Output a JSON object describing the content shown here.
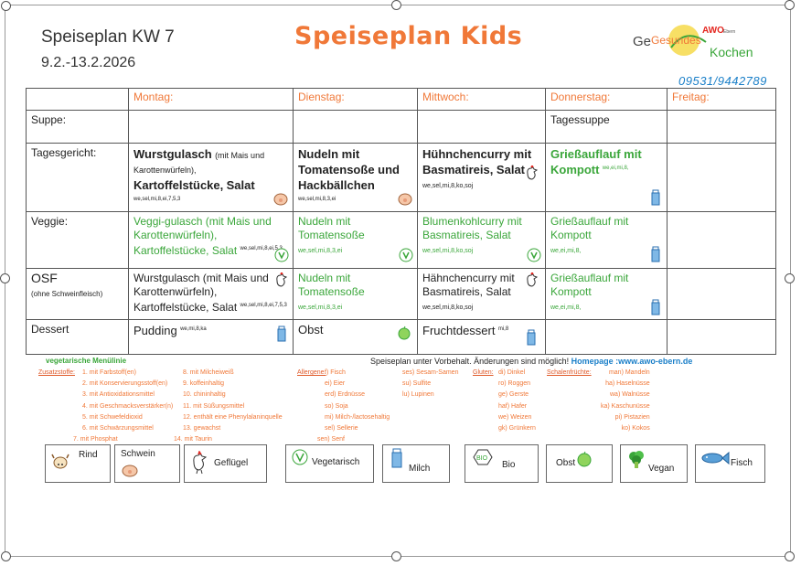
{
  "header": {
    "title": "Speiseplan KW 7",
    "date_range": "9.2.-13.2.2026",
    "main_title": "Speiseplan Kids",
    "logo_awo": "AWO",
    "logo_ebern": "Ebern",
    "logo_gesundes": "Gesundes",
    "logo_kochen": "Kochen",
    "phone": "09531/9442789"
  },
  "days": [
    "Montag:",
    "Dienstag:",
    "Mittwoch:",
    "Donnerstag:",
    "Freitag:"
  ],
  "rows": {
    "suppe": {
      "label": "Suppe:",
      "thursday": "Tagessuppe"
    },
    "tages": {
      "label": "Tagesgericht:",
      "mon_a": "Wurstgulasch",
      "mon_b": "(mit Mais und Karottenwürfeln),",
      "mon_c": "Kartoffelstücke,",
      "mon_d": "Salat",
      "mon_code": "we,sel,mi,8,ei,7,5,3",
      "tue": "Nudeln mit Tomatensoße und Hackbällchen",
      "tue_code": "we,sel,mi,8,3,ei",
      "wed": "Hühnchencurry mit Basmatireis, Salat",
      "wed_code": "we,sel,mi,8,ko,soj",
      "thu": "Grießauflauf mit Kompott",
      "thu_code": "we,ei,mi,8,"
    },
    "veggie": {
      "label": "Veggie:",
      "mon": "Veggi-gulasch (mit Mais und Karottenwürfeln), Kartoffelstücke, Salat",
      "mon_code": "we,sel,mi,8,ei,5,3",
      "tue": "Nudeln mit Tomatensoße",
      "tue_code": "we,sel,mi,8,3,ei",
      "wed": "Blumenkohlcurry mit Basmatireis, Salat",
      "wed_code": "we,sel,mi,8,ko,soj",
      "thu": "Grießauflauf mit Kompott",
      "thu_code": "we,ei,mi,8,"
    },
    "osf": {
      "label": "OSF",
      "sublabel": "(ohne Schweinfleisch)",
      "mon": "Wurstgulasch (mit Mais und Karottenwürfeln), Kartoffelstücke, Salat",
      "mon_code": "we,sel,mi,8,ei,7,5,3",
      "tue": "Nudeln mit Tomatensoße",
      "tue_code": "we,sel,mi,8,3,ei",
      "wed": "Hähnchencurry mit Basmatireis, Salat",
      "wed_code": "we,sel,mi,8,ko,soj",
      "thu": "Grießauflauf mit Kompott",
      "thu_code": "we,ei,mi,8,"
    },
    "dessert": {
      "label": "Dessert",
      "mon": "Pudding",
      "mon_code": "we,mi,8,ka",
      "tue": "Obst",
      "wed": "Fruchtdessert",
      "wed_code": "mi,8"
    }
  },
  "legend": {
    "veg_line": "vegetarische Menülinie",
    "notice": "Speiseplan unter Vorbehalt. Änderungen sind möglich!",
    "homepage": "Homepage :www.awo-ebern.de",
    "zusatz_head": "Zusatzstoffe:",
    "zusatz_col1": [
      "1. mit Farbstoff(en)",
      "2. mit Konservierungsstoff(en)",
      "3. mit Antioxidationsmittel",
      "4. mit Geschmacksverstärker(n)",
      "5. mit Schwefeldioxid",
      "6. mit Schwärzungsmittel",
      "7. mit Phosphat"
    ],
    "zusatz_col2": [
      "8. mit Milcheiweiß",
      "9. koffeinhaltig",
      "10. chininhaltig",
      "11. mit Süßungsmittel",
      "12. enthält eine Phenylalaninquelle",
      "13. gewachst",
      "14. mit Taurin"
    ],
    "allergene_head": "Allergene:",
    "allergene_col1": [
      "f) Fisch",
      "ei) Eier",
      "erd) Erdnüsse",
      "so) Soja",
      "mi) Milch-/lactosehaltig",
      "sel) Sellerie",
      "sen) Senf"
    ],
    "allergene_col2": [
      "ses) Sesam-Samen",
      "su) Sulfite",
      "lu) Lupinen"
    ],
    "gluten_head": "Gluten:",
    "gluten_col": [
      "di) Dinkel",
      "ro) Roggen",
      "ge) Gerste",
      "haf) Hafer",
      "we) Weizen",
      "gk) Grünkern"
    ],
    "schalen_head": "Schalenfrüchte:",
    "schalen_col": [
      "man) Mandeln",
      "ha) Haselnüsse",
      "wa) Walnüsse",
      "ka) Kaschunüsse",
      "pi) Pistazien",
      "ko) Kokos"
    ]
  },
  "boxes": [
    "Rind",
    "Schwein",
    "Geflügel",
    "Vegetarisch",
    "Milch",
    "Bio",
    "Obst",
    "Vegan",
    "Fisch"
  ],
  "colors": {
    "accent": "#f07838",
    "green": "#3aa63a",
    "blue": "#1a7fc8"
  }
}
